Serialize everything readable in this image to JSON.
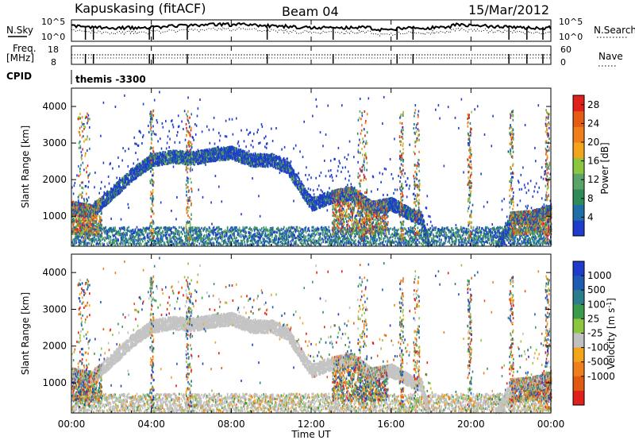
{
  "header": {
    "station": "Kapuskasing (fitACF)",
    "beam": "Beam 04",
    "date": "15/Mar/2012"
  },
  "noise_panel": {
    "left_label": "N.Sky",
    "left_ticks": [
      "10^5",
      "10^0"
    ],
    "right_label": "N.Search",
    "right_ticks": [
      "10^5",
      "10^0"
    ]
  },
  "freq_panel": {
    "left_label_line1": "Freq.",
    "left_label_line2": "[MHz]",
    "left_ticks": [
      "18",
      "8"
    ],
    "right_label": "Nave",
    "right_ticks": [
      "60",
      "0"
    ]
  },
  "cpid_panel": {
    "label": "CPID",
    "value": "themis -3300"
  },
  "x_axis": {
    "label": "Time UT",
    "ticks": [
      "00:00",
      "04:00",
      "08:00",
      "12:00",
      "16:00",
      "20:00",
      "00:00"
    ]
  },
  "colors": {
    "power_scale": [
      "#1f3ccc",
      "#1f6ea8",
      "#2e8b57",
      "#5aa469",
      "#8cc63f",
      "#f2a51a",
      "#f07e1a",
      "#e55b13",
      "#e0201a"
    ],
    "velocity_scale": [
      "#1f3ccc",
      "#1f5bb0",
      "#2a7d8a",
      "#3a9a4a",
      "#8cc63f",
      "#c0c0c0",
      "#f2a51a",
      "#f07e1a",
      "#e05a13",
      "#e0201a"
    ]
  },
  "chart_data": [
    {
      "type": "heatmap",
      "title": "Power",
      "xlabel": "Time UT",
      "ylabel": "Slant Range [km]",
      "xlim_hours": [
        0,
        24
      ],
      "ylim_km": [
        180,
        4500
      ],
      "y_ticks": [
        "1000",
        "2000",
        "3000",
        "4000"
      ],
      "colorbar": {
        "label": "Power [dB]",
        "ticks": [
          "4",
          "8",
          "12",
          "16",
          "20",
          "24",
          "28"
        ],
        "range": [
          0,
          30
        ]
      },
      "features": [
        {
          "description": "band",
          "t": [
            0.0,
            1.0,
            2.0,
            3.0,
            4.0,
            5.0,
            6.0,
            7.0,
            8.0,
            9.0,
            10.0,
            10.8,
            11.5,
            12.0,
            13.0,
            14.0,
            15.0,
            16.0,
            17.0,
            17.5,
            18.0,
            19.0,
            20.0,
            21.0,
            22.0,
            23.0,
            24.0
          ],
          "range_km": [
            1400,
            1300,
            1800,
            2300,
            2700,
            2800,
            2750,
            2850,
            2900,
            2700,
            2700,
            2500,
            1900,
            1500,
            1700,
            1800,
            1400,
            1500,
            1200,
            1100,
            0,
            0,
            0,
            0,
            1100,
            1150,
            1300
          ]
        }
      ]
    },
    {
      "type": "heatmap",
      "title": "Velocity",
      "xlabel": "Time UT",
      "ylabel": "Slant Range [km]",
      "xlim_hours": [
        0,
        24
      ],
      "ylim_km": [
        180,
        4500
      ],
      "y_ticks": [
        "1000",
        "2000",
        "3000",
        "4000"
      ],
      "colorbar": {
        "label": "Velocity [m s^-1]",
        "ticks": [
          "1000",
          "500",
          "100",
          "25",
          "-25",
          "-100",
          "-500",
          "-1000"
        ]
      }
    }
  ]
}
